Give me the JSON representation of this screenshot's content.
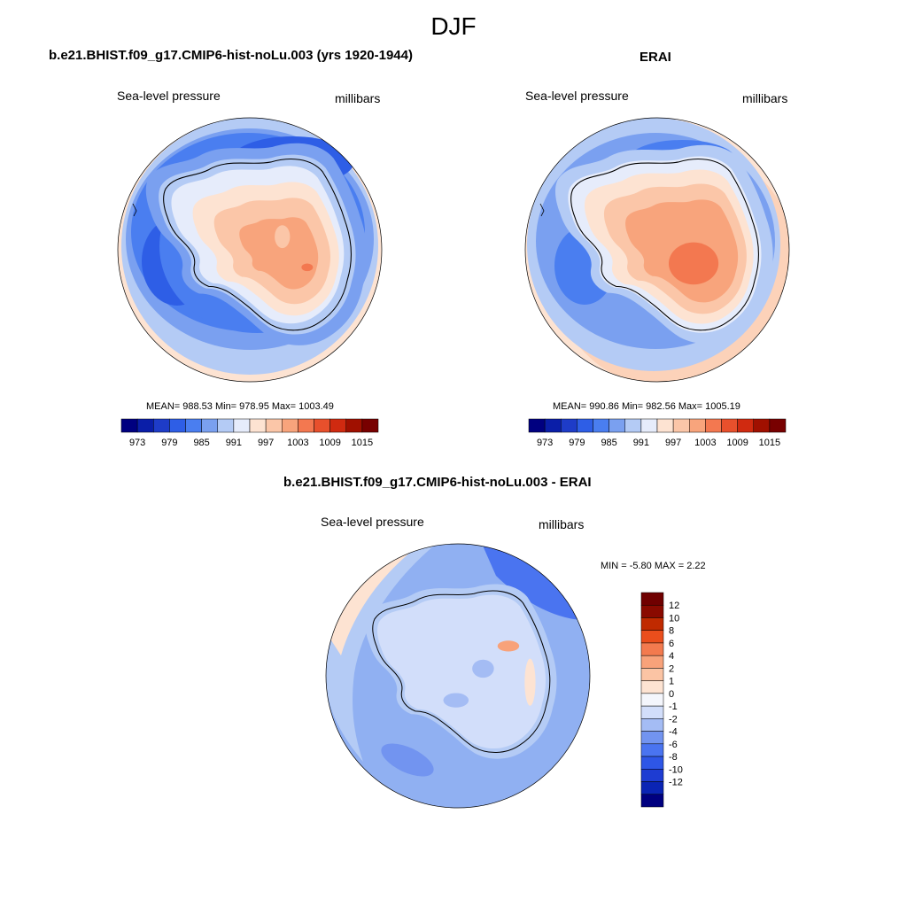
{
  "page_title": "DJF",
  "panels": [
    {
      "title": "b.e21.BHIST.f09_g17.CMIP6-hist-noLu.003 (yrs 1920-1944)",
      "left_label": "Sea-level pressure",
      "right_label": "millibars",
      "stats": "MEAN= 988.53  Min= 978.95  Max= 1003.49"
    },
    {
      "title": "ERAI",
      "left_label": "Sea-level pressure",
      "right_label": "millibars",
      "stats": "MEAN= 990.86  Min= 982.56  Max= 1005.19"
    },
    {
      "title": "b.e21.BHIST.f09_g17.CMIP6-hist-noLu.003 - ERAI",
      "left_label": "Sea-level pressure",
      "right_label": "millibars",
      "stats": "MIN =  -5.80 MAX =   2.22"
    }
  ],
  "colorbar_abs": {
    "colors": [
      "#000080",
      "#0a1ea8",
      "#1e3cc8",
      "#2e5ee6",
      "#4a7ef0",
      "#7aa0f0",
      "#b4cbf5",
      "#e6ecfb",
      "#fde3d2",
      "#fbc6a8",
      "#f8a47c",
      "#f37850",
      "#e8502c",
      "#d02a10",
      "#a01000",
      "#780000"
    ],
    "tick_labels": [
      "973",
      "979",
      "985",
      "991",
      "997",
      "1003",
      "1009",
      "1015"
    ]
  },
  "colorbar_diff": {
    "colors": [
      "#000080",
      "#0a24b4",
      "#1e3cd2",
      "#2e56e6",
      "#4a74f0",
      "#7294f0",
      "#a4bcf4",
      "#d2defa",
      "#f4f6fc",
      "#fde3d2",
      "#fbc4a4",
      "#f8a27a",
      "#f37a4e",
      "#ea4e1c",
      "#c02a00",
      "#8a0a00",
      "#700000"
    ],
    "tick_labels": [
      "12",
      "10",
      "8",
      "6",
      "4",
      "2",
      "1",
      "0",
      "-1",
      "-2",
      "-4",
      "-6",
      "-8",
      "-10",
      "-12"
    ]
  },
  "map_fill_colors": {
    "ocean_light": "#b4cbf5",
    "ocean_mid": "#7aa0f0",
    "ocean_deep": "#4a7ef0",
    "ocean_low": "#2e5ee6",
    "rim": "#fde3d2",
    "rim_warm": "#fbc6a8",
    "high_1": "#fde3d2",
    "high_2": "#fbc6a8",
    "high_3": "#f8a47c",
    "high_4": "#f37850",
    "diff_bg": "#90b0f2",
    "diff_light": "#b4cbf5",
    "diff_dark": "#4a74f0",
    "diff_pos": "#fde3d2"
  }
}
